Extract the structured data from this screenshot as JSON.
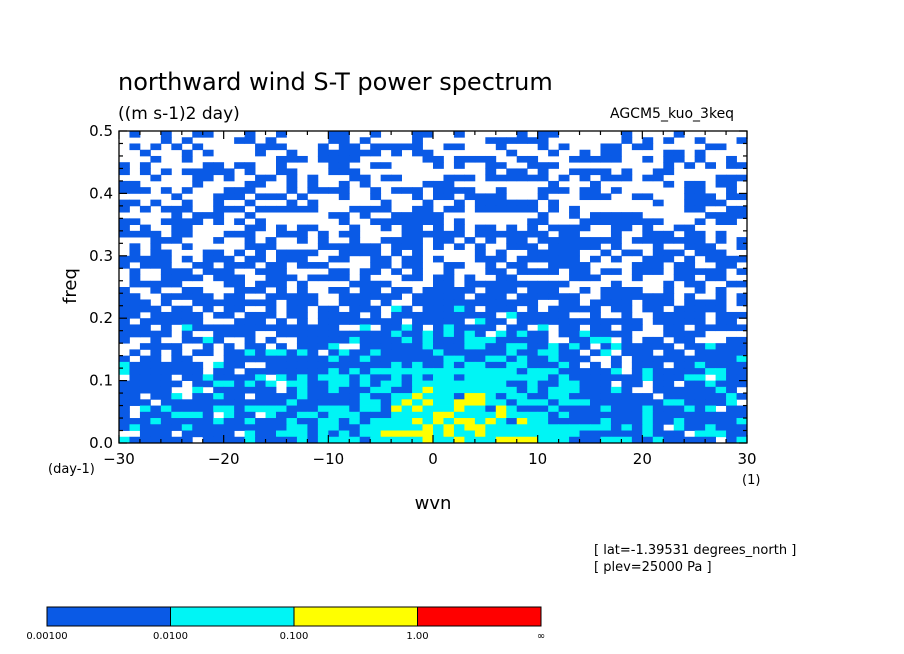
{
  "chart_data": {
    "type": "heatmap",
    "title": "northward wind S-T power spectrum",
    "subtitle": "((m s-1)2 day)",
    "run_label": "AGCM5_kuo_3keq",
    "xlabel": "wvn",
    "ylabel": "freq",
    "x_unit": "(1)",
    "y_unit": "(day-1)",
    "xlim": [
      -30,
      30
    ],
    "ylim": [
      0,
      0.5
    ],
    "x_ticks": [
      "-30",
      "-20",
      "-10",
      "0",
      "10",
      "20",
      "30"
    ],
    "y_ticks": [
      "0.0",
      "0.1",
      "0.2",
      "0.3",
      "0.4",
      "0.5"
    ],
    "levels": [
      0.001,
      0.01,
      0.1,
      1.0
    ],
    "level_labels": [
      "0.00100",
      "0.0100",
      "0.100",
      "1.00",
      "∞"
    ],
    "colors": [
      "#ffffff",
      "#0a5ae6",
      "#00f5f5",
      "#ffff00",
      "#ff0000"
    ],
    "description_levels": {
      "max_power_region": "wvn -5 to 10, freq 0.0 to 0.1",
      "secondary_band": "wvn -15 to 15, freq 0.0 to 0.35"
    }
  },
  "annotations": {
    "lat": "[ lat=-1.39531 degrees_north ]",
    "plev": "[ plev=25000 Pa ]"
  }
}
